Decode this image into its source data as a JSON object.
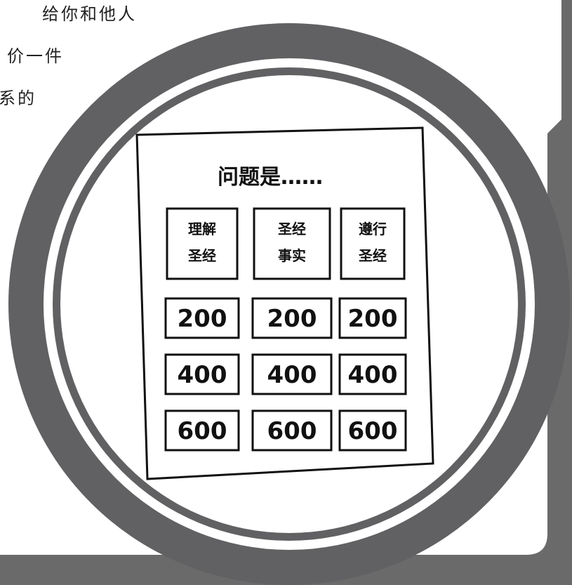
{
  "side_text": [
    "给你和他人",
    "价一件",
    "系的"
  ],
  "board": {
    "title": "问题是……",
    "categories": [
      [
        "理解",
        "圣经"
      ],
      [
        "圣经",
        "事实"
      ],
      [
        "遵行",
        "圣经"
      ]
    ],
    "rows": [
      [
        200,
        200,
        200
      ],
      [
        400,
        400,
        400
      ],
      [
        600,
        600,
        600
      ]
    ]
  }
}
